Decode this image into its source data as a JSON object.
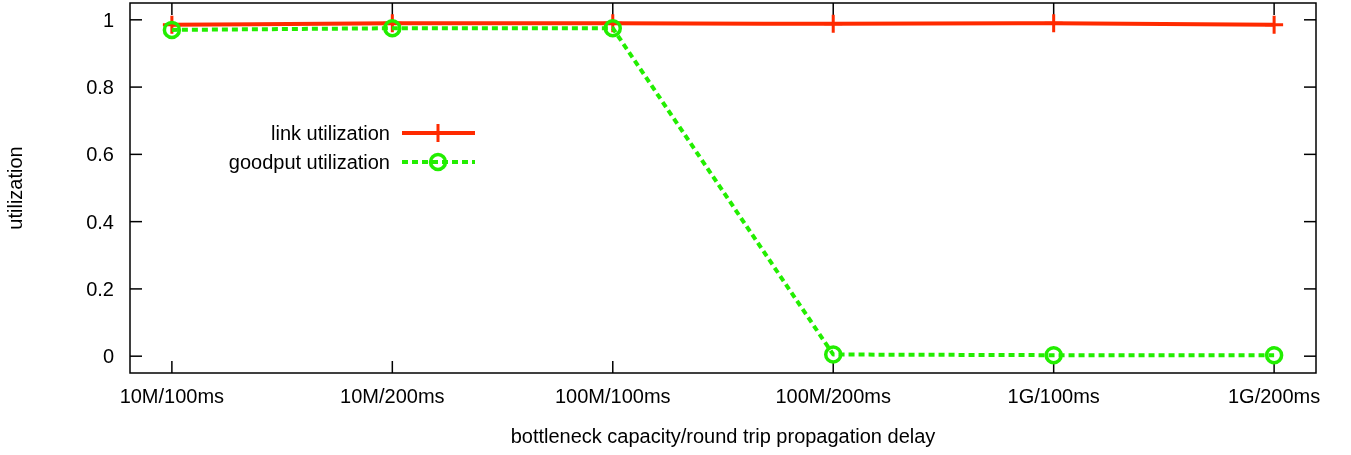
{
  "chart_data": {
    "type": "line",
    "xlabel": "bottleneck capacity/round trip propagation delay",
    "ylabel": "utilization",
    "categories": [
      "10M/100ms",
      "10M/200ms",
      "100M/100ms",
      "100M/200ms",
      "1G/100ms",
      "1G/200ms"
    ],
    "ylim": [
      -0.05,
      1.05
    ],
    "yticks": [
      0,
      0.2,
      0.4,
      0.6,
      0.8,
      1
    ],
    "grid": false,
    "legend": "top left",
    "series": [
      {
        "name": "link utilization",
        "color": "#ff2a00",
        "values": [
          0.985,
          0.99,
          0.99,
          0.988,
          0.99,
          0.985
        ],
        "marker": "cross",
        "line_style": "solid"
      },
      {
        "name": "goodput utilization",
        "color": "#22ee00",
        "values": [
          0.97,
          0.975,
          0.975,
          0.005,
          0.003,
          0.003
        ],
        "marker": "circle",
        "line_style": "dashed"
      }
    ]
  }
}
